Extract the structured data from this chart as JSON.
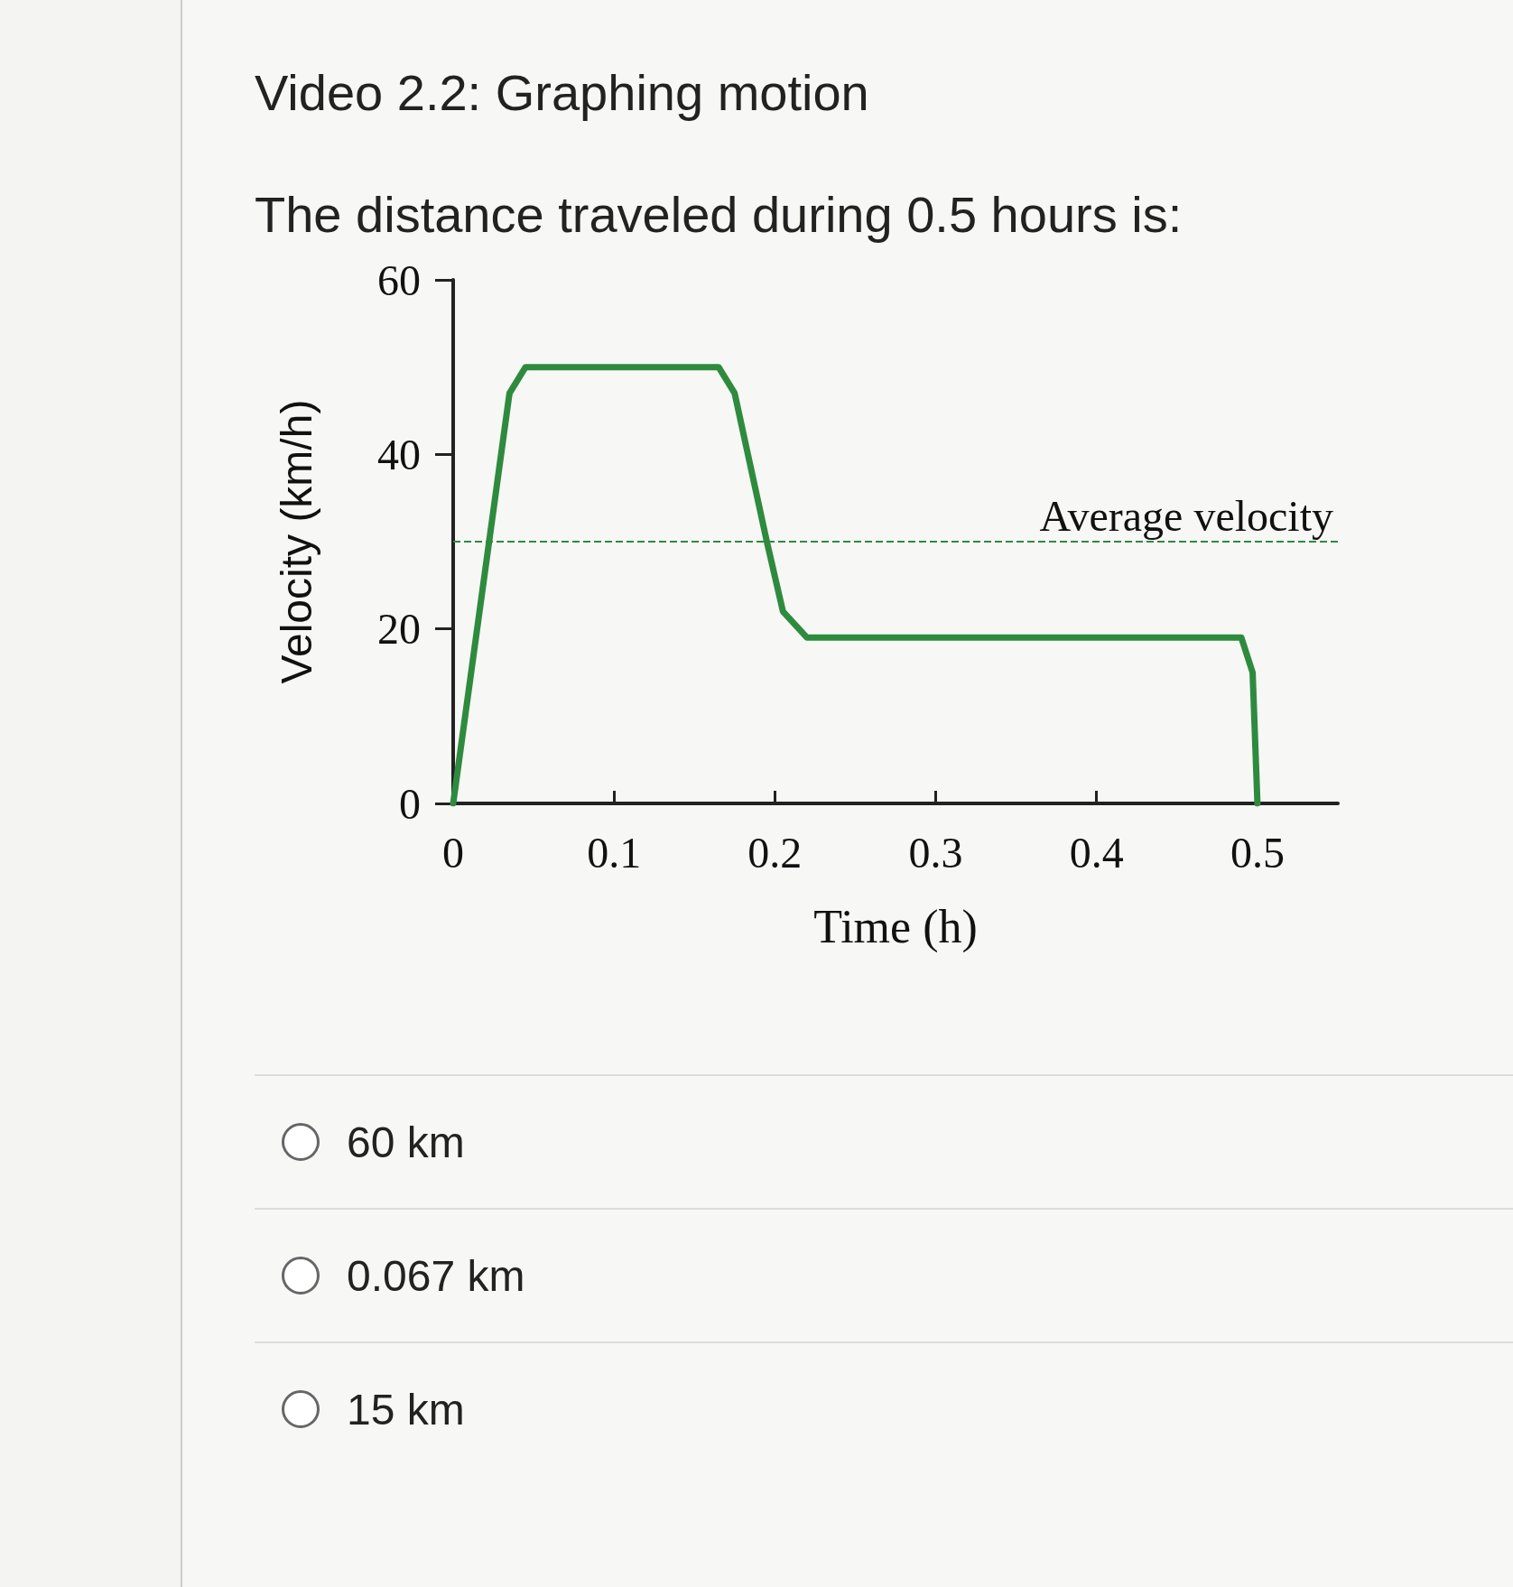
{
  "chart_data": {
    "type": "line",
    "title": "Video 2.2: Graphing motion",
    "subtitle": "The distance traveled during 0.5 hours is:",
    "xlabel": "Time (h)",
    "ylabel": "Velocity (km/h)",
    "x": [
      0,
      0.035,
      0.045,
      0.165,
      0.175,
      0.195,
      0.205,
      0.22,
      0.49,
      0.497,
      0.5
    ],
    "series": [
      {
        "color": "#2e8b3e",
        "values": [
          0,
          47,
          50,
          50,
          47,
          30,
          22,
          19,
          19,
          15,
          0
        ]
      }
    ],
    "xlim": [
      0,
      0.55
    ],
    "xticks": [
      0,
      0.1,
      0.2,
      0.3,
      0.4,
      0.5
    ],
    "ylim": [
      0,
      60
    ],
    "yticks": [
      0,
      20,
      40,
      60
    ],
    "ref_lines": [
      {
        "axis": "y",
        "value": 30,
        "label": "Average velocity",
        "line_style": "dashed",
        "color": "#2e8b3e"
      }
    ],
    "annotations": [
      "60 km",
      "0.067 km",
      "15 km"
    ],
    "grid": false,
    "marker": "none",
    "line_style": "solid"
  }
}
